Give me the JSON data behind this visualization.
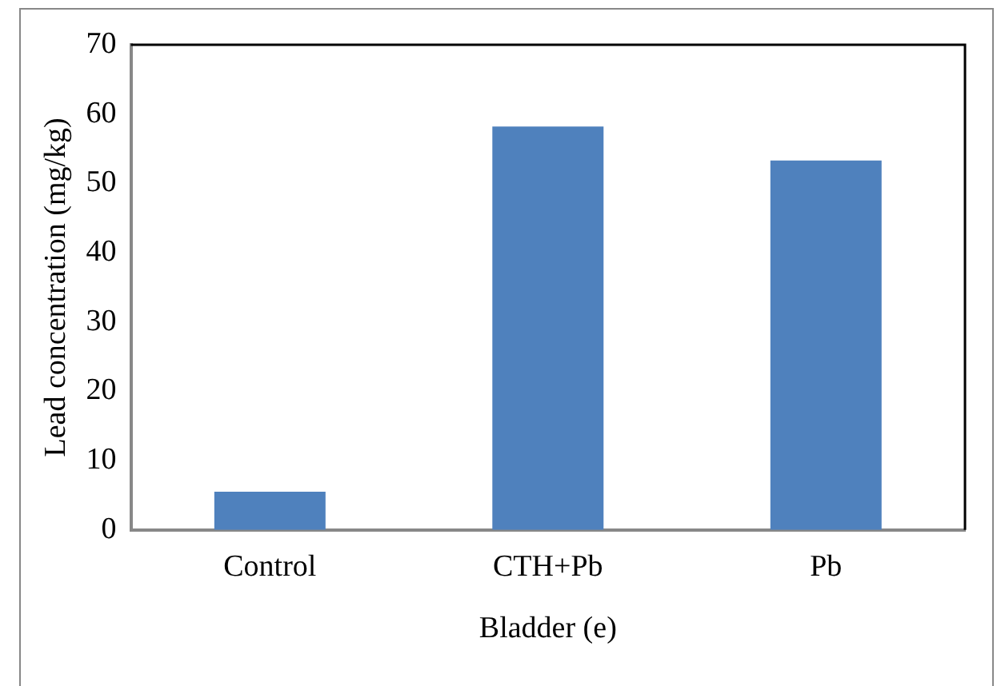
{
  "chart_data": {
    "type": "bar",
    "xlabel": "Bladder (e)",
    "ylabel": "Lead concentration (mg/kg)",
    "categories": [
      "Control",
      "CTH+Pb",
      "Pb"
    ],
    "values": [
      5.5,
      58.2,
      53.3
    ],
    "color": "#4f81bd",
    "ylim": [
      0,
      70
    ],
    "yticks": [
      0,
      10,
      20,
      30,
      40,
      50,
      60,
      70
    ],
    "grid": false,
    "legend": false
  }
}
